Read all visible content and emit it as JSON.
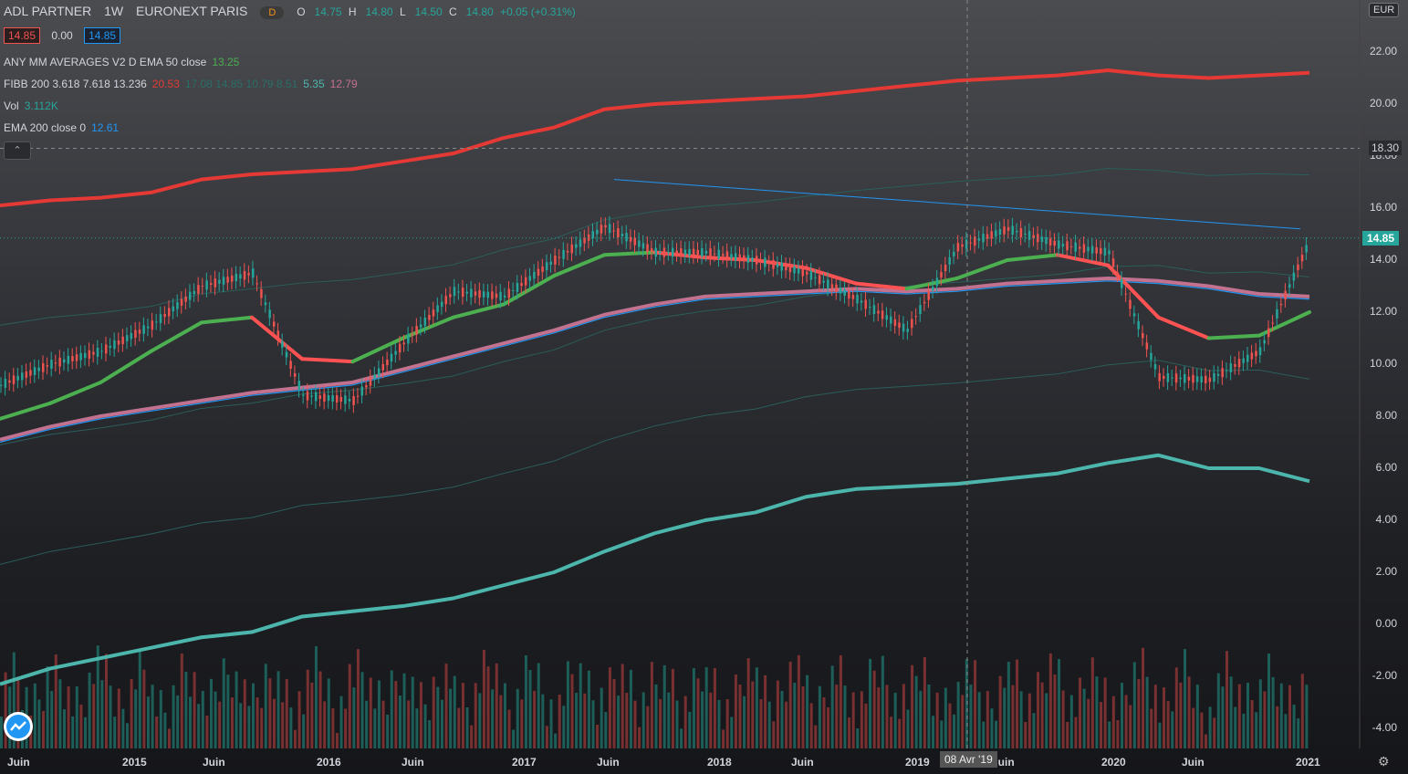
{
  "header": {
    "symbol": "ADL PARTNER",
    "interval": "1W",
    "exchange": "EURONEXT PARIS",
    "badge": "D",
    "ohlc": {
      "o_label": "O",
      "o": "14.75",
      "h_label": "H",
      "h": "14.80",
      "l_label": "L",
      "l": "14.50",
      "c_label": "C",
      "c": "14.80",
      "change": "+0.05 (+0.31%)"
    }
  },
  "quote_boxes": {
    "bid": "14.85",
    "spread": "0.00",
    "ask": "14.85"
  },
  "indicators": [
    {
      "name": "ANY MM AVERAGES V2 D EMA 50 close",
      "value": "13.25",
      "color": "#4caf50"
    },
    {
      "name": "FIBB 200 3.618 7.618 13.236",
      "value": "20.53",
      "extra": "17.08  14.85  10.79  8.51",
      "value2": "5.35",
      "value3": "12.79",
      "color": "#e53935"
    },
    {
      "name": "Vol",
      "value": "3.112K",
      "color": "#26a69a"
    },
    {
      "name": "EMA 200 close 0",
      "value": "12.61",
      "color": "#2196f3"
    }
  ],
  "axis": {
    "currency": "EUR",
    "price_labels": [
      "22.00",
      "20.00",
      "18.00",
      "16.00",
      "14.00",
      "12.00",
      "10.00",
      "8.00",
      "6.00",
      "4.00",
      "2.00",
      "0.00",
      "-2.00",
      "-4.00"
    ],
    "current_price": "14.85",
    "crosshair_price": "18.30",
    "time_labels": [
      "Juin",
      "2015",
      "Juin",
      "2016",
      "Juin",
      "2017",
      "Juin",
      "2018",
      "Juin",
      "2019",
      "Juin",
      "2020",
      "Juin",
      "2021"
    ],
    "crosshair_date": "08 Avr '19"
  },
  "colors": {
    "up": "#26a69a",
    "down": "#ef5350",
    "ema50": "#4caf50",
    "ema50_down": "#ff5252",
    "ema200": "#2196f3",
    "fib_top": "#e53935",
    "fib_bottom": "#4db6ac",
    "ema_slow": "#c2728f"
  },
  "chart_data": {
    "type": "line",
    "x": [
      "2014-06",
      "2014-09",
      "2014-12",
      "2015-03",
      "2015-06",
      "2015-09",
      "2015-12",
      "2016-03",
      "2016-06",
      "2016-09",
      "2016-12",
      "2017-03",
      "2017-06",
      "2017-09",
      "2017-12",
      "2018-03",
      "2018-06",
      "2018-09",
      "2018-12",
      "2019-03",
      "2019-06",
      "2019-09",
      "2019-12",
      "2020-03",
      "2020-06",
      "2020-09",
      "2020-12"
    ],
    "series": [
      {
        "name": "Close",
        "values": [
          9.2,
          10.0,
          10.5,
          11.5,
          13.0,
          13.5,
          8.8,
          8.6,
          10.8,
          12.8,
          12.6,
          14.0,
          15.3,
          14.3,
          14.3,
          14.0,
          13.5,
          12.5,
          11.3,
          14.5,
          15.2,
          14.6,
          14.3,
          9.5,
          9.4,
          10.5,
          14.8
        ]
      },
      {
        "values": [
          7.9,
          8.5,
          9.3,
          10.5,
          11.6,
          11.8,
          10.2,
          10.1,
          11.0,
          11.8,
          12.3,
          13.4,
          14.2,
          14.3,
          14.1,
          14.0,
          13.7,
          13.1,
          12.9,
          13.3,
          14.0,
          14.2,
          13.8,
          11.8,
          11.0,
          11.1,
          12.0
        ]
      },
      {
        "values": [
          7.0,
          7.5,
          7.9,
          8.2,
          8.5,
          8.8,
          9.0,
          9.2,
          9.7,
          10.2,
          10.7,
          11.2,
          11.8,
          12.2,
          12.5,
          12.6,
          12.7,
          12.8,
          12.7,
          12.8,
          13.0,
          13.1,
          13.2,
          13.1,
          12.9,
          12.6,
          12.5
        ]
      },
      {
        "values": [
          16.1,
          16.3,
          16.4,
          16.6,
          17.1,
          17.3,
          17.4,
          17.5,
          17.8,
          18.1,
          18.7,
          19.1,
          19.8,
          20.0,
          20.1,
          20.2,
          20.3,
          20.5,
          20.7,
          20.9,
          21.0,
          21.1,
          21.3,
          21.1,
          21.0,
          21.1,
          21.2
        ]
      },
      {
        "values": [
          -2.3,
          -1.7,
          -1.3,
          -0.9,
          -0.5,
          -0.3,
          0.3,
          0.5,
          0.7,
          1.0,
          1.5,
          2.0,
          2.8,
          3.5,
          4.0,
          4.3,
          4.9,
          5.2,
          5.3,
          5.4,
          5.6,
          5.8,
          6.2,
          6.5,
          6.0,
          6.0,
          5.5
        ]
      }
    ],
    "ylim": [
      -4.5,
      23.5
    ]
  }
}
